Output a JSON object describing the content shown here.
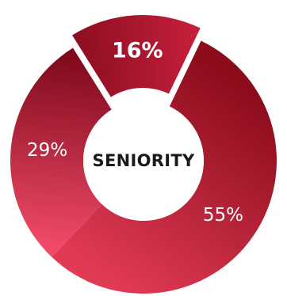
{
  "chart_data": {
    "type": "pie",
    "title": "SENIORITY",
    "slices": [
      {
        "label": "16%",
        "value": 16,
        "color_start": "#8f0f22",
        "color_end": "#c41e3a",
        "exploded": true
      },
      {
        "label": "55%",
        "value": 55,
        "color_start": "#8c0c1c",
        "color_end": "#e03a55",
        "exploded": false
      },
      {
        "label": "29%",
        "value": 29,
        "color_start": "#f04a68",
        "color_end": "#800a1c",
        "exploded": false
      }
    ],
    "legend": "none",
    "grid": false
  }
}
